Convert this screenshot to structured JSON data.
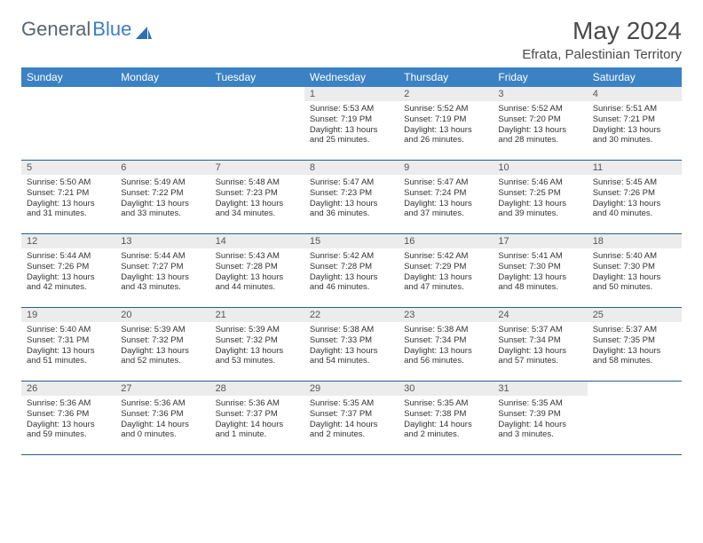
{
  "brand": {
    "part1": "General",
    "part2": "Blue"
  },
  "title": "May 2024",
  "location": "Efrata, Palestinian Territory",
  "colors": {
    "header_bg": "#3b82c4",
    "header_text": "#ffffff",
    "daynum_bg": "#ececec",
    "row_border": "#2b5c8a",
    "logo_gray": "#5a6570",
    "logo_blue": "#3b7fc4"
  },
  "weekdays": [
    "Sunday",
    "Monday",
    "Tuesday",
    "Wednesday",
    "Thursday",
    "Friday",
    "Saturday"
  ],
  "weeks": [
    [
      {
        "n": "",
        "sr": "",
        "ss": "",
        "dl": ""
      },
      {
        "n": "",
        "sr": "",
        "ss": "",
        "dl": ""
      },
      {
        "n": "",
        "sr": "",
        "ss": "",
        "dl": ""
      },
      {
        "n": "1",
        "sr": "Sunrise: 5:53 AM",
        "ss": "Sunset: 7:19 PM",
        "dl": "Daylight: 13 hours and 25 minutes."
      },
      {
        "n": "2",
        "sr": "Sunrise: 5:52 AM",
        "ss": "Sunset: 7:19 PM",
        "dl": "Daylight: 13 hours and 26 minutes."
      },
      {
        "n": "3",
        "sr": "Sunrise: 5:52 AM",
        "ss": "Sunset: 7:20 PM",
        "dl": "Daylight: 13 hours and 28 minutes."
      },
      {
        "n": "4",
        "sr": "Sunrise: 5:51 AM",
        "ss": "Sunset: 7:21 PM",
        "dl": "Daylight: 13 hours and 30 minutes."
      }
    ],
    [
      {
        "n": "5",
        "sr": "Sunrise: 5:50 AM",
        "ss": "Sunset: 7:21 PM",
        "dl": "Daylight: 13 hours and 31 minutes."
      },
      {
        "n": "6",
        "sr": "Sunrise: 5:49 AM",
        "ss": "Sunset: 7:22 PM",
        "dl": "Daylight: 13 hours and 33 minutes."
      },
      {
        "n": "7",
        "sr": "Sunrise: 5:48 AM",
        "ss": "Sunset: 7:23 PM",
        "dl": "Daylight: 13 hours and 34 minutes."
      },
      {
        "n": "8",
        "sr": "Sunrise: 5:47 AM",
        "ss": "Sunset: 7:23 PM",
        "dl": "Daylight: 13 hours and 36 minutes."
      },
      {
        "n": "9",
        "sr": "Sunrise: 5:47 AM",
        "ss": "Sunset: 7:24 PM",
        "dl": "Daylight: 13 hours and 37 minutes."
      },
      {
        "n": "10",
        "sr": "Sunrise: 5:46 AM",
        "ss": "Sunset: 7:25 PM",
        "dl": "Daylight: 13 hours and 39 minutes."
      },
      {
        "n": "11",
        "sr": "Sunrise: 5:45 AM",
        "ss": "Sunset: 7:26 PM",
        "dl": "Daylight: 13 hours and 40 minutes."
      }
    ],
    [
      {
        "n": "12",
        "sr": "Sunrise: 5:44 AM",
        "ss": "Sunset: 7:26 PM",
        "dl": "Daylight: 13 hours and 42 minutes."
      },
      {
        "n": "13",
        "sr": "Sunrise: 5:44 AM",
        "ss": "Sunset: 7:27 PM",
        "dl": "Daylight: 13 hours and 43 minutes."
      },
      {
        "n": "14",
        "sr": "Sunrise: 5:43 AM",
        "ss": "Sunset: 7:28 PM",
        "dl": "Daylight: 13 hours and 44 minutes."
      },
      {
        "n": "15",
        "sr": "Sunrise: 5:42 AM",
        "ss": "Sunset: 7:28 PM",
        "dl": "Daylight: 13 hours and 46 minutes."
      },
      {
        "n": "16",
        "sr": "Sunrise: 5:42 AM",
        "ss": "Sunset: 7:29 PM",
        "dl": "Daylight: 13 hours and 47 minutes."
      },
      {
        "n": "17",
        "sr": "Sunrise: 5:41 AM",
        "ss": "Sunset: 7:30 PM",
        "dl": "Daylight: 13 hours and 48 minutes."
      },
      {
        "n": "18",
        "sr": "Sunrise: 5:40 AM",
        "ss": "Sunset: 7:30 PM",
        "dl": "Daylight: 13 hours and 50 minutes."
      }
    ],
    [
      {
        "n": "19",
        "sr": "Sunrise: 5:40 AM",
        "ss": "Sunset: 7:31 PM",
        "dl": "Daylight: 13 hours and 51 minutes."
      },
      {
        "n": "20",
        "sr": "Sunrise: 5:39 AM",
        "ss": "Sunset: 7:32 PM",
        "dl": "Daylight: 13 hours and 52 minutes."
      },
      {
        "n": "21",
        "sr": "Sunrise: 5:39 AM",
        "ss": "Sunset: 7:32 PM",
        "dl": "Daylight: 13 hours and 53 minutes."
      },
      {
        "n": "22",
        "sr": "Sunrise: 5:38 AM",
        "ss": "Sunset: 7:33 PM",
        "dl": "Daylight: 13 hours and 54 minutes."
      },
      {
        "n": "23",
        "sr": "Sunrise: 5:38 AM",
        "ss": "Sunset: 7:34 PM",
        "dl": "Daylight: 13 hours and 56 minutes."
      },
      {
        "n": "24",
        "sr": "Sunrise: 5:37 AM",
        "ss": "Sunset: 7:34 PM",
        "dl": "Daylight: 13 hours and 57 minutes."
      },
      {
        "n": "25",
        "sr": "Sunrise: 5:37 AM",
        "ss": "Sunset: 7:35 PM",
        "dl": "Daylight: 13 hours and 58 minutes."
      }
    ],
    [
      {
        "n": "26",
        "sr": "Sunrise: 5:36 AM",
        "ss": "Sunset: 7:36 PM",
        "dl": "Daylight: 13 hours and 59 minutes."
      },
      {
        "n": "27",
        "sr": "Sunrise: 5:36 AM",
        "ss": "Sunset: 7:36 PM",
        "dl": "Daylight: 14 hours and 0 minutes."
      },
      {
        "n": "28",
        "sr": "Sunrise: 5:36 AM",
        "ss": "Sunset: 7:37 PM",
        "dl": "Daylight: 14 hours and 1 minute."
      },
      {
        "n": "29",
        "sr": "Sunrise: 5:35 AM",
        "ss": "Sunset: 7:37 PM",
        "dl": "Daylight: 14 hours and 2 minutes."
      },
      {
        "n": "30",
        "sr": "Sunrise: 5:35 AM",
        "ss": "Sunset: 7:38 PM",
        "dl": "Daylight: 14 hours and 2 minutes."
      },
      {
        "n": "31",
        "sr": "Sunrise: 5:35 AM",
        "ss": "Sunset: 7:39 PM",
        "dl": "Daylight: 14 hours and 3 minutes."
      },
      {
        "n": "",
        "sr": "",
        "ss": "",
        "dl": ""
      }
    ]
  ]
}
